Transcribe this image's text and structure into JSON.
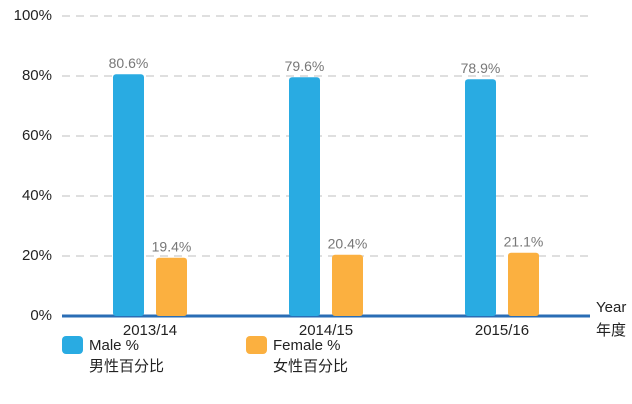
{
  "chart_data": {
    "type": "bar",
    "categories": [
      "2013/14",
      "2014/15",
      "2015/16"
    ],
    "xlabel": "Year",
    "xlabel_zh": "年度",
    "series": [
      {
        "name": "Male %",
        "name_zh": "男性百分比",
        "color": "#29abe2",
        "values": [
          80.6,
          79.6,
          78.9
        ],
        "value_labels": [
          "80.6%",
          "79.6%",
          "78.9%"
        ]
      },
      {
        "name": "Female %",
        "name_zh": "女性百分比",
        "color": "#fbb040",
        "values": [
          19.4,
          20.4,
          21.1
        ],
        "value_labels": [
          "19.4%",
          "20.4%",
          "21.1%"
        ]
      }
    ],
    "ylim": [
      0,
      100
    ],
    "yticks": [
      {
        "value": 0,
        "label": "0%"
      },
      {
        "value": 20,
        "label": "20%"
      },
      {
        "value": 40,
        "label": "40%"
      },
      {
        "value": 60,
        "label": "60%"
      },
      {
        "value": 80,
        "label": "80%"
      },
      {
        "value": 100,
        "label": "100%"
      }
    ],
    "grid": true,
    "legend": "bottom"
  }
}
